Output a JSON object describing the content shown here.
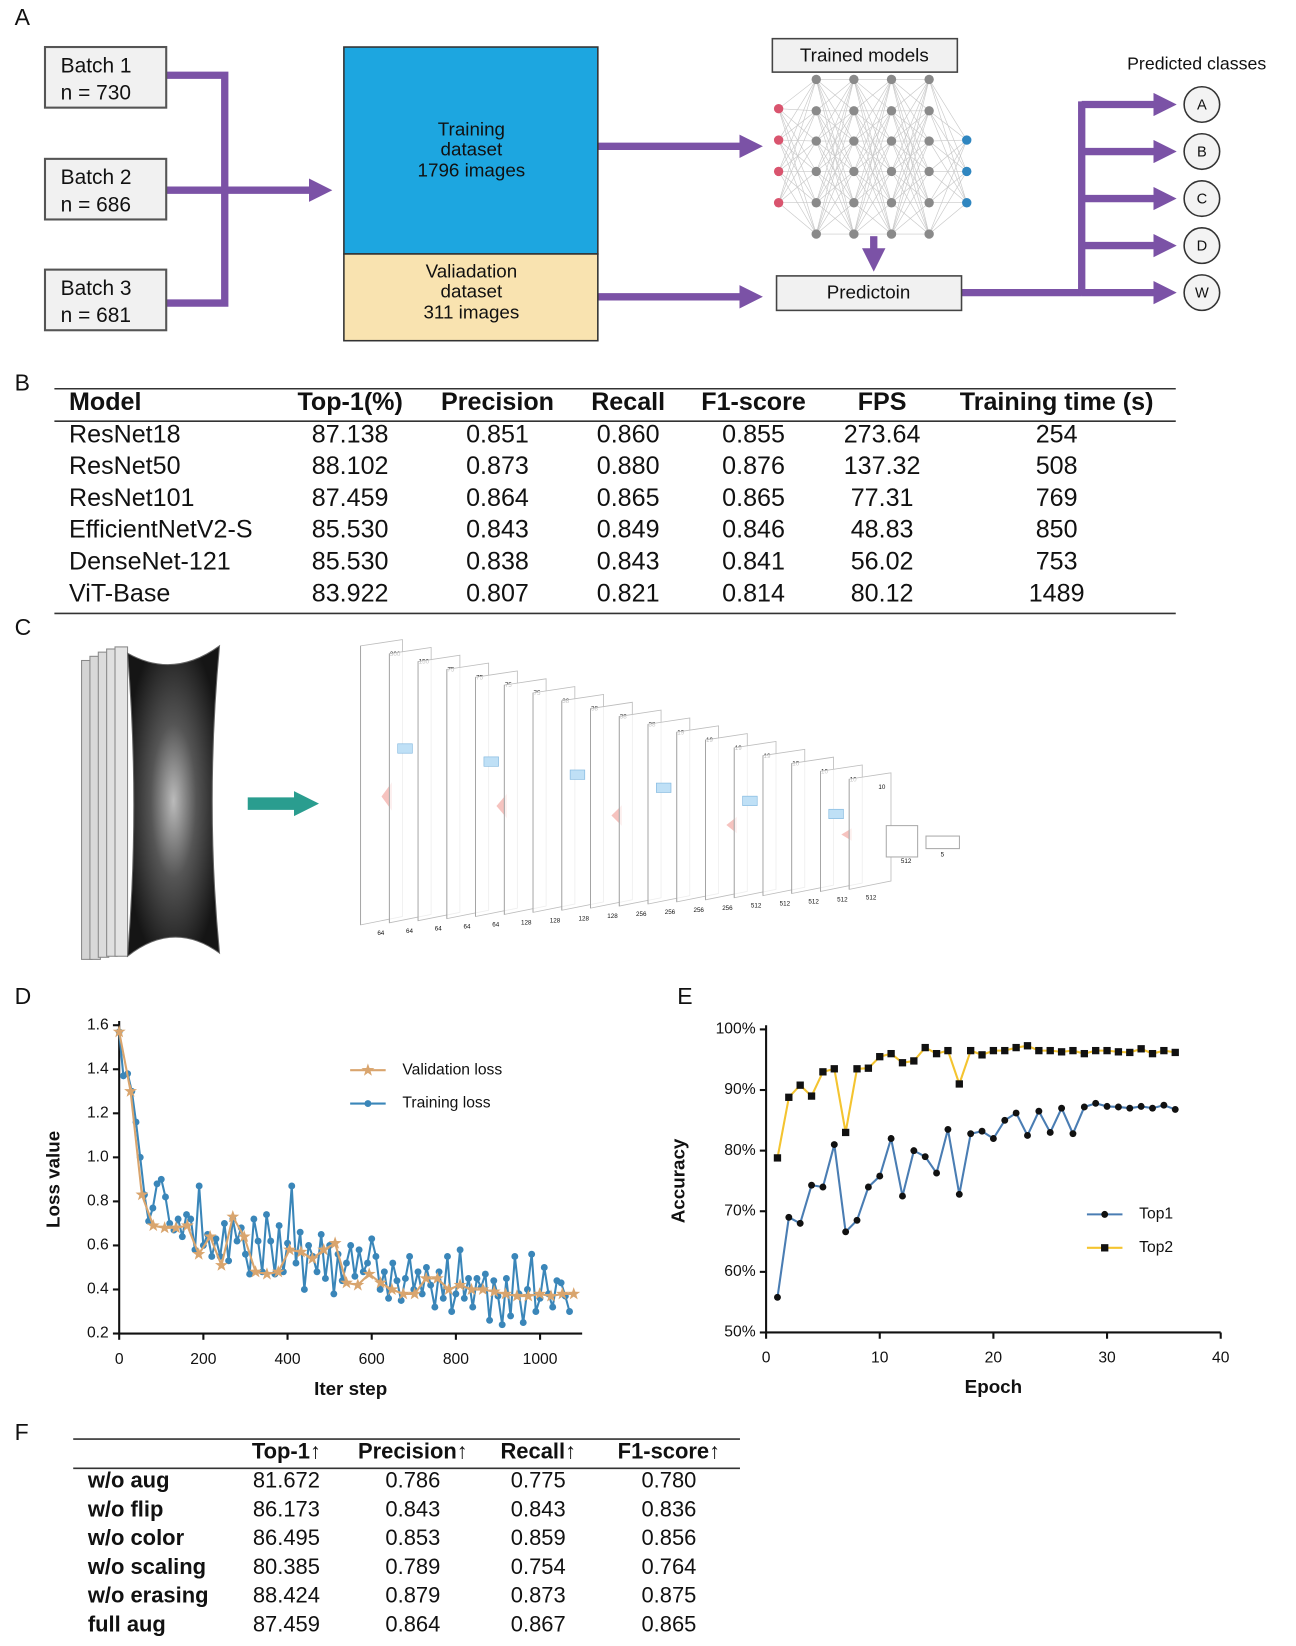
{
  "panel_labels": [
    "A",
    "B",
    "C",
    "D",
    "E",
    "F"
  ],
  "panel_a": {
    "batches": [
      {
        "name": "Batch 1",
        "n": "n = 730"
      },
      {
        "name": "Batch 2",
        "n": "n = 686"
      },
      {
        "name": "Batch 3",
        "n": "n = 681"
      }
    ],
    "training": [
      "Training",
      "dataset",
      "1796 images"
    ],
    "validation": [
      "Valiadation",
      "dataset",
      "311 images"
    ],
    "trained_models": "Trained models",
    "prediction": "Predictoin",
    "predicted_classes_title": "Predicted classes",
    "classes": [
      "A",
      "B",
      "C",
      "D",
      "W"
    ]
  },
  "table_b": {
    "header": [
      "Model",
      "Top-1(%)",
      "Precision",
      "Recall",
      "F1-score",
      "FPS",
      "Training time (s)"
    ],
    "rows": [
      [
        "ResNet18",
        "87.138",
        "0.851",
        "0.860",
        "0.855",
        "273.64",
        "254"
      ],
      [
        "ResNet50",
        "88.102",
        "0.873",
        "0.880",
        "0.876",
        "137.32",
        "508"
      ],
      [
        "ResNet101",
        "87.459",
        "0.864",
        "0.865",
        "0.865",
        "77.31",
        "769"
      ],
      [
        "EfficientNetV2-S",
        "85.530",
        "0.843",
        "0.849",
        "0.846",
        "48.83",
        "850"
      ],
      [
        "DenseNet-121",
        "85.530",
        "0.838",
        "0.843",
        "0.841",
        "56.02",
        "753"
      ],
      [
        "ViT-Base",
        "83.922",
        "0.807",
        "0.821",
        "0.814",
        "80.12",
        "1489"
      ]
    ]
  },
  "panel_c": {
    "top_labels": [
      "300",
      "150",
      "75",
      "75",
      "75",
      "75",
      "38",
      "38",
      "38",
      "38",
      "19",
      "19",
      "19",
      "19",
      "10",
      "10",
      "10",
      "10"
    ],
    "bottom_labels": [
      "64",
      "64",
      "64",
      "64",
      "64",
      "128",
      "128",
      "128",
      "128",
      "256",
      "256",
      "256",
      "256",
      "512",
      "512",
      "512",
      "512",
      "512"
    ],
    "fc_labels": [
      "512",
      "5"
    ]
  },
  "chart_data": [
    {
      "type": "line",
      "y_label": "Loss value",
      "x_label": "Iter step",
      "xlim": [
        0,
        1100
      ],
      "xticks": [
        0,
        200,
        400,
        600,
        800,
        1000
      ],
      "ylim": [
        0.2,
        1.6
      ],
      "yticks": [
        0.2,
        0.4,
        0.6,
        0.8,
        {
          "value": 1,
          "label": "1.0"
        },
        1.2,
        1.4,
        1.6
      ],
      "legend": "upper right",
      "series": [
        {
          "name": "Validation loss",
          "color": "#d9a56e",
          "marker": "star",
          "x": [
            0,
            27,
            54,
            81,
            108,
            135,
            162,
            189,
            216,
            243,
            270,
            297,
            324,
            351,
            378,
            405,
            432,
            459,
            486,
            513,
            540,
            567,
            594,
            621,
            648,
            675,
            702,
            729,
            756,
            783,
            810,
            837,
            864,
            891,
            918,
            945,
            972,
            999,
            1026,
            1053,
            1080
          ],
          "values": [
            1.57,
            1.3,
            0.83,
            0.69,
            0.68,
            0.68,
            0.69,
            0.56,
            0.64,
            0.51,
            0.73,
            0.64,
            0.48,
            0.47,
            0.48,
            0.58,
            0.57,
            0.54,
            0.58,
            0.61,
            0.43,
            0.42,
            0.47,
            0.43,
            0.4,
            0.38,
            0.38,
            0.45,
            0.45,
            0.4,
            0.42,
            0.4,
            0.4,
            0.39,
            0.38,
            0.37,
            0.37,
            0.38,
            0.37,
            0.38,
            0.38
          ]
        },
        {
          "name": "Training loss",
          "color": "#3a86b9",
          "marker": "circle",
          "x": [
            0,
            10,
            20,
            30,
            40,
            50,
            60,
            70,
            80,
            90,
            100,
            110,
            120,
            130,
            140,
            150,
            160,
            170,
            180,
            190,
            200,
            210,
            220,
            230,
            240,
            250,
            260,
            270,
            280,
            290,
            300,
            310,
            320,
            330,
            340,
            350,
            360,
            370,
            380,
            390,
            400,
            410,
            420,
            430,
            440,
            450,
            460,
            470,
            480,
            490,
            500,
            510,
            520,
            530,
            540,
            550,
            560,
            570,
            580,
            590,
            600,
            610,
            620,
            630,
            640,
            650,
            660,
            670,
            680,
            690,
            700,
            710,
            720,
            730,
            740,
            750,
            760,
            770,
            780,
            790,
            800,
            810,
            820,
            830,
            840,
            850,
            860,
            870,
            880,
            890,
            900,
            910,
            920,
            930,
            940,
            950,
            960,
            970,
            980,
            990,
            1000,
            1010,
            1020,
            1030,
            1040,
            1050,
            1060,
            1070
          ],
          "values": [
            1.57,
            1.37,
            1.38,
            1.3,
            1.16,
            1.0,
            0.83,
            0.71,
            0.77,
            0.88,
            0.9,
            0.82,
            0.7,
            0.67,
            0.72,
            0.64,
            0.74,
            0.72,
            0.58,
            0.87,
            0.6,
            0.65,
            0.55,
            0.63,
            0.55,
            0.7,
            0.53,
            0.72,
            0.62,
            0.68,
            0.56,
            0.47,
            0.72,
            0.62,
            0.48,
            0.74,
            0.62,
            0.47,
            0.69,
            0.48,
            0.61,
            0.87,
            0.52,
            0.66,
            0.4,
            0.6,
            0.55,
            0.48,
            0.65,
            0.45,
            0.6,
            0.38,
            0.56,
            0.44,
            0.52,
            0.6,
            0.46,
            0.58,
            0.48,
            0.52,
            0.63,
            0.55,
            0.4,
            0.48,
            0.36,
            0.52,
            0.44,
            0.35,
            0.45,
            0.55,
            0.4,
            0.48,
            0.38,
            0.5,
            0.42,
            0.32,
            0.48,
            0.36,
            0.55,
            0.3,
            0.38,
            0.58,
            0.36,
            0.45,
            0.32,
            0.45,
            0.41,
            0.47,
            0.26,
            0.44,
            0.37,
            0.24,
            0.45,
            0.28,
            0.55,
            0.38,
            0.25,
            0.4,
            0.56,
            0.3,
            0.36,
            0.5,
            0.38,
            0.32,
            0.44,
            0.43,
            0.37,
            0.3
          ]
        }
      ]
    },
    {
      "type": "line",
      "y_label": "Accuracy",
      "x_label": "Epoch",
      "xlim": [
        0,
        40
      ],
      "xticks": [
        0,
        10,
        20,
        30,
        40
      ],
      "ylim": [
        50,
        100
      ],
      "yticks": [
        {
          "value": 50,
          "label": "50%"
        },
        {
          "value": 60,
          "label": "60%"
        },
        {
          "value": 70,
          "label": "70%"
        },
        {
          "value": 80,
          "label": "80%"
        },
        {
          "value": 90,
          "label": "90%"
        },
        {
          "value": 100,
          "label": "100%"
        }
      ],
      "legend": "lower right",
      "x": [
        1,
        2,
        3,
        4,
        5,
        6,
        7,
        8,
        9,
        10,
        11,
        12,
        13,
        14,
        15,
        16,
        17,
        18,
        19,
        20,
        21,
        22,
        23,
        24,
        25,
        26,
        27,
        28,
        29,
        30,
        31,
        32,
        33,
        34,
        35,
        36
      ],
      "series": [
        {
          "name": "Top1",
          "color": "#4a7db3",
          "marker": "circle",
          "marker_color": "#111111",
          "values": [
            55.8,
            69,
            68,
            74.3,
            74,
            81,
            66.6,
            68.5,
            74,
            75.8,
            82,
            72.5,
            80,
            79,
            76.3,
            83.5,
            72.8,
            82.8,
            83.2,
            82,
            85,
            86.2,
            82.5,
            86.5,
            83,
            87,
            82.8,
            87.2,
            87.8,
            87.3,
            87.2,
            87,
            87.3,
            87,
            87.5,
            86.8
          ]
        },
        {
          "name": "Top2",
          "color": "#f4c430",
          "marker": "square",
          "marker_color": "#111111",
          "values": [
            78.8,
            88.8,
            90.8,
            89,
            93,
            93.5,
            83,
            93.5,
            93.6,
            95.5,
            96,
            94.5,
            94.8,
            97,
            96,
            96.5,
            91,
            96.5,
            95.8,
            96.5,
            96.5,
            97,
            97.3,
            96.5,
            96.5,
            96.3,
            96.5,
            96,
            96.5,
            96.5,
            96.3,
            96.2,
            96.8,
            96,
            96.5,
            96.2
          ]
        }
      ]
    }
  ],
  "table_f": {
    "header": [
      "Top-1↑",
      "Precision↑",
      "Recall↑",
      "F1-score↑"
    ],
    "rows": [
      [
        "w/o aug",
        "81.672",
        "0.786",
        "0.775",
        "0.780"
      ],
      [
        "w/o flip",
        "86.173",
        "0.843",
        "0.843",
        "0.836"
      ],
      [
        "w/o color",
        "86.495",
        "0.853",
        "0.859",
        "0.856"
      ],
      [
        "w/o scaling",
        "80.385",
        "0.789",
        "0.754",
        "0.764"
      ],
      [
        "w/o erasing",
        "88.424",
        "0.879",
        "0.873",
        "0.875"
      ],
      [
        "full aug",
        "87.459",
        "0.864",
        "0.867",
        "0.865"
      ]
    ]
  }
}
